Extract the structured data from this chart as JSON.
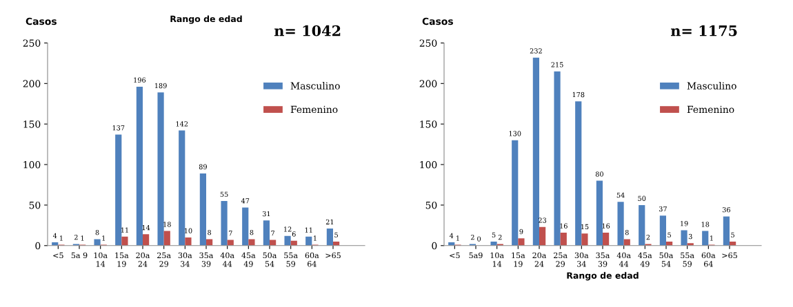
{
  "chart_data": [
    {
      "type": "bar",
      "title": "Rango de edad",
      "ylabel": "Casos",
      "annotations": [
        "n= 1042"
      ],
      "categories": [
        "<5",
        "5a 9",
        "10a\n14",
        "15a\n19",
        "20a\n24",
        "25a\n29",
        "30a\n34",
        "35a\n39",
        "40a\n44",
        "45a\n49",
        "50a\n54",
        "55a\n59",
        "60a\n64",
        ">65"
      ],
      "series": [
        {
          "name": "Masculino",
          "color": "#4f81bd",
          "values": [
            4,
            2,
            8,
            137,
            196,
            189,
            142,
            89,
            55,
            47,
            31,
            12,
            11,
            21
          ]
        },
        {
          "name": "Femenino",
          "color": "#c0504d",
          "values": [
            1,
            1,
            1,
            11,
            14,
            18,
            10,
            8,
            7,
            8,
            7,
            6,
            1,
            5
          ]
        }
      ],
      "ylim": [
        0,
        250
      ],
      "yticks": [
        0,
        50,
        100,
        150,
        200,
        250
      ],
      "grid": false,
      "legend": "top right",
      "data_labels": true
    },
    {
      "type": "bar",
      "xlabel": "Rango de edad",
      "ylabel": "Casos",
      "annotations": [
        "n= 1175"
      ],
      "categories": [
        "<5",
        "5a9",
        "10a\n14",
        "15a\n19",
        "20a\n24",
        "25a\n29",
        "30a\n34",
        "35a\n39",
        "40a\n44",
        "45a\n49",
        "50a\n54",
        "55a\n59",
        "60a\n64",
        ">65"
      ],
      "series": [
        {
          "name": "Masculino",
          "color": "#4f81bd",
          "values": [
            4,
            2,
            5,
            130,
            232,
            215,
            178,
            80,
            54,
            50,
            37,
            19,
            18,
            36
          ]
        },
        {
          "name": "Femenino",
          "color": "#c0504d",
          "values": [
            1,
            0,
            2,
            9,
            23,
            16,
            15,
            16,
            8,
            2,
            5,
            3,
            1,
            5
          ]
        }
      ],
      "ylim": [
        0,
        250
      ],
      "yticks": [
        0,
        50,
        100,
        150,
        200,
        250
      ],
      "grid": false,
      "legend": "top right",
      "data_labels": true
    }
  ]
}
